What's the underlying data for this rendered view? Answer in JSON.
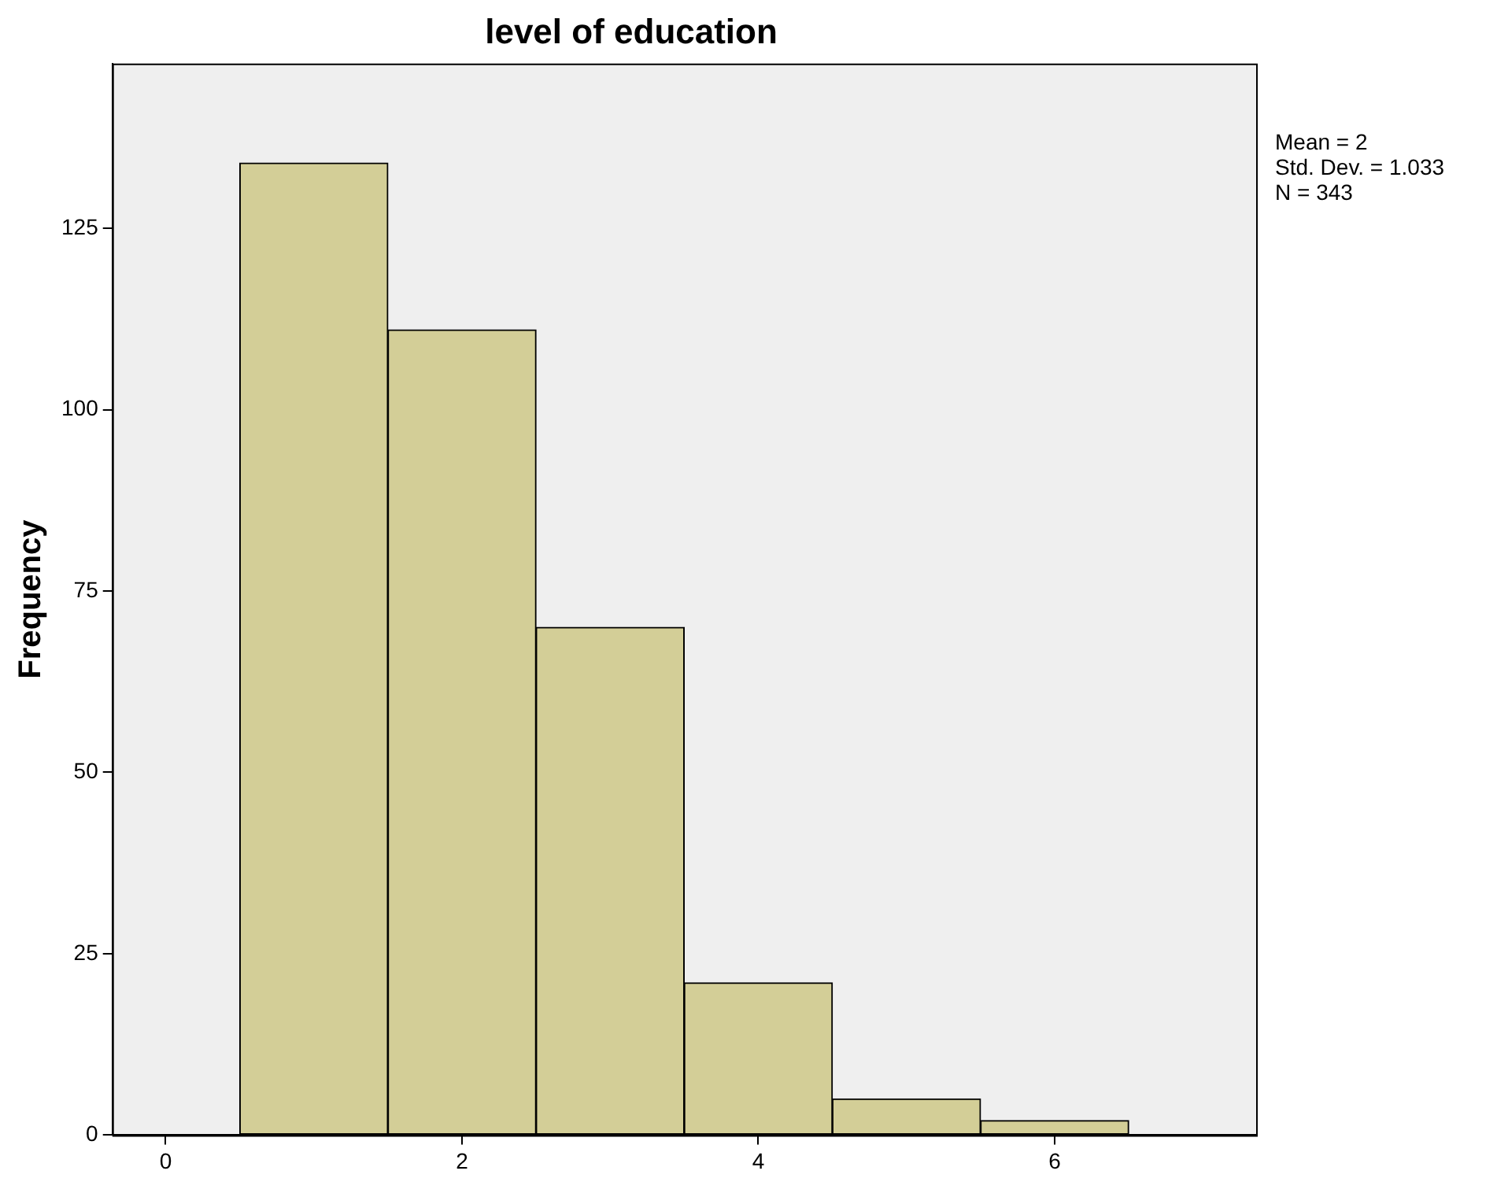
{
  "chart_data": {
    "type": "histogram",
    "title": "level of education",
    "ylabel": "Frequency",
    "bins": [
      0.5,
      1.5,
      2.5,
      3.5,
      4.5,
      5.5,
      6.5
    ],
    "values": [
      134,
      111,
      70,
      21,
      5,
      2
    ],
    "color": "#d3ce97",
    "xlim": [
      -0.36,
      7.36
    ],
    "xticks": [
      0,
      2,
      4,
      6
    ],
    "ylim": [
      0,
      147.7
    ],
    "yticks": [
      0,
      25,
      50,
      75,
      100,
      125
    ],
    "grid": false,
    "legend": false,
    "annotations": [
      "Mean = 2",
      "Std. Dev. = 1.033",
      "N = 343"
    ]
  }
}
